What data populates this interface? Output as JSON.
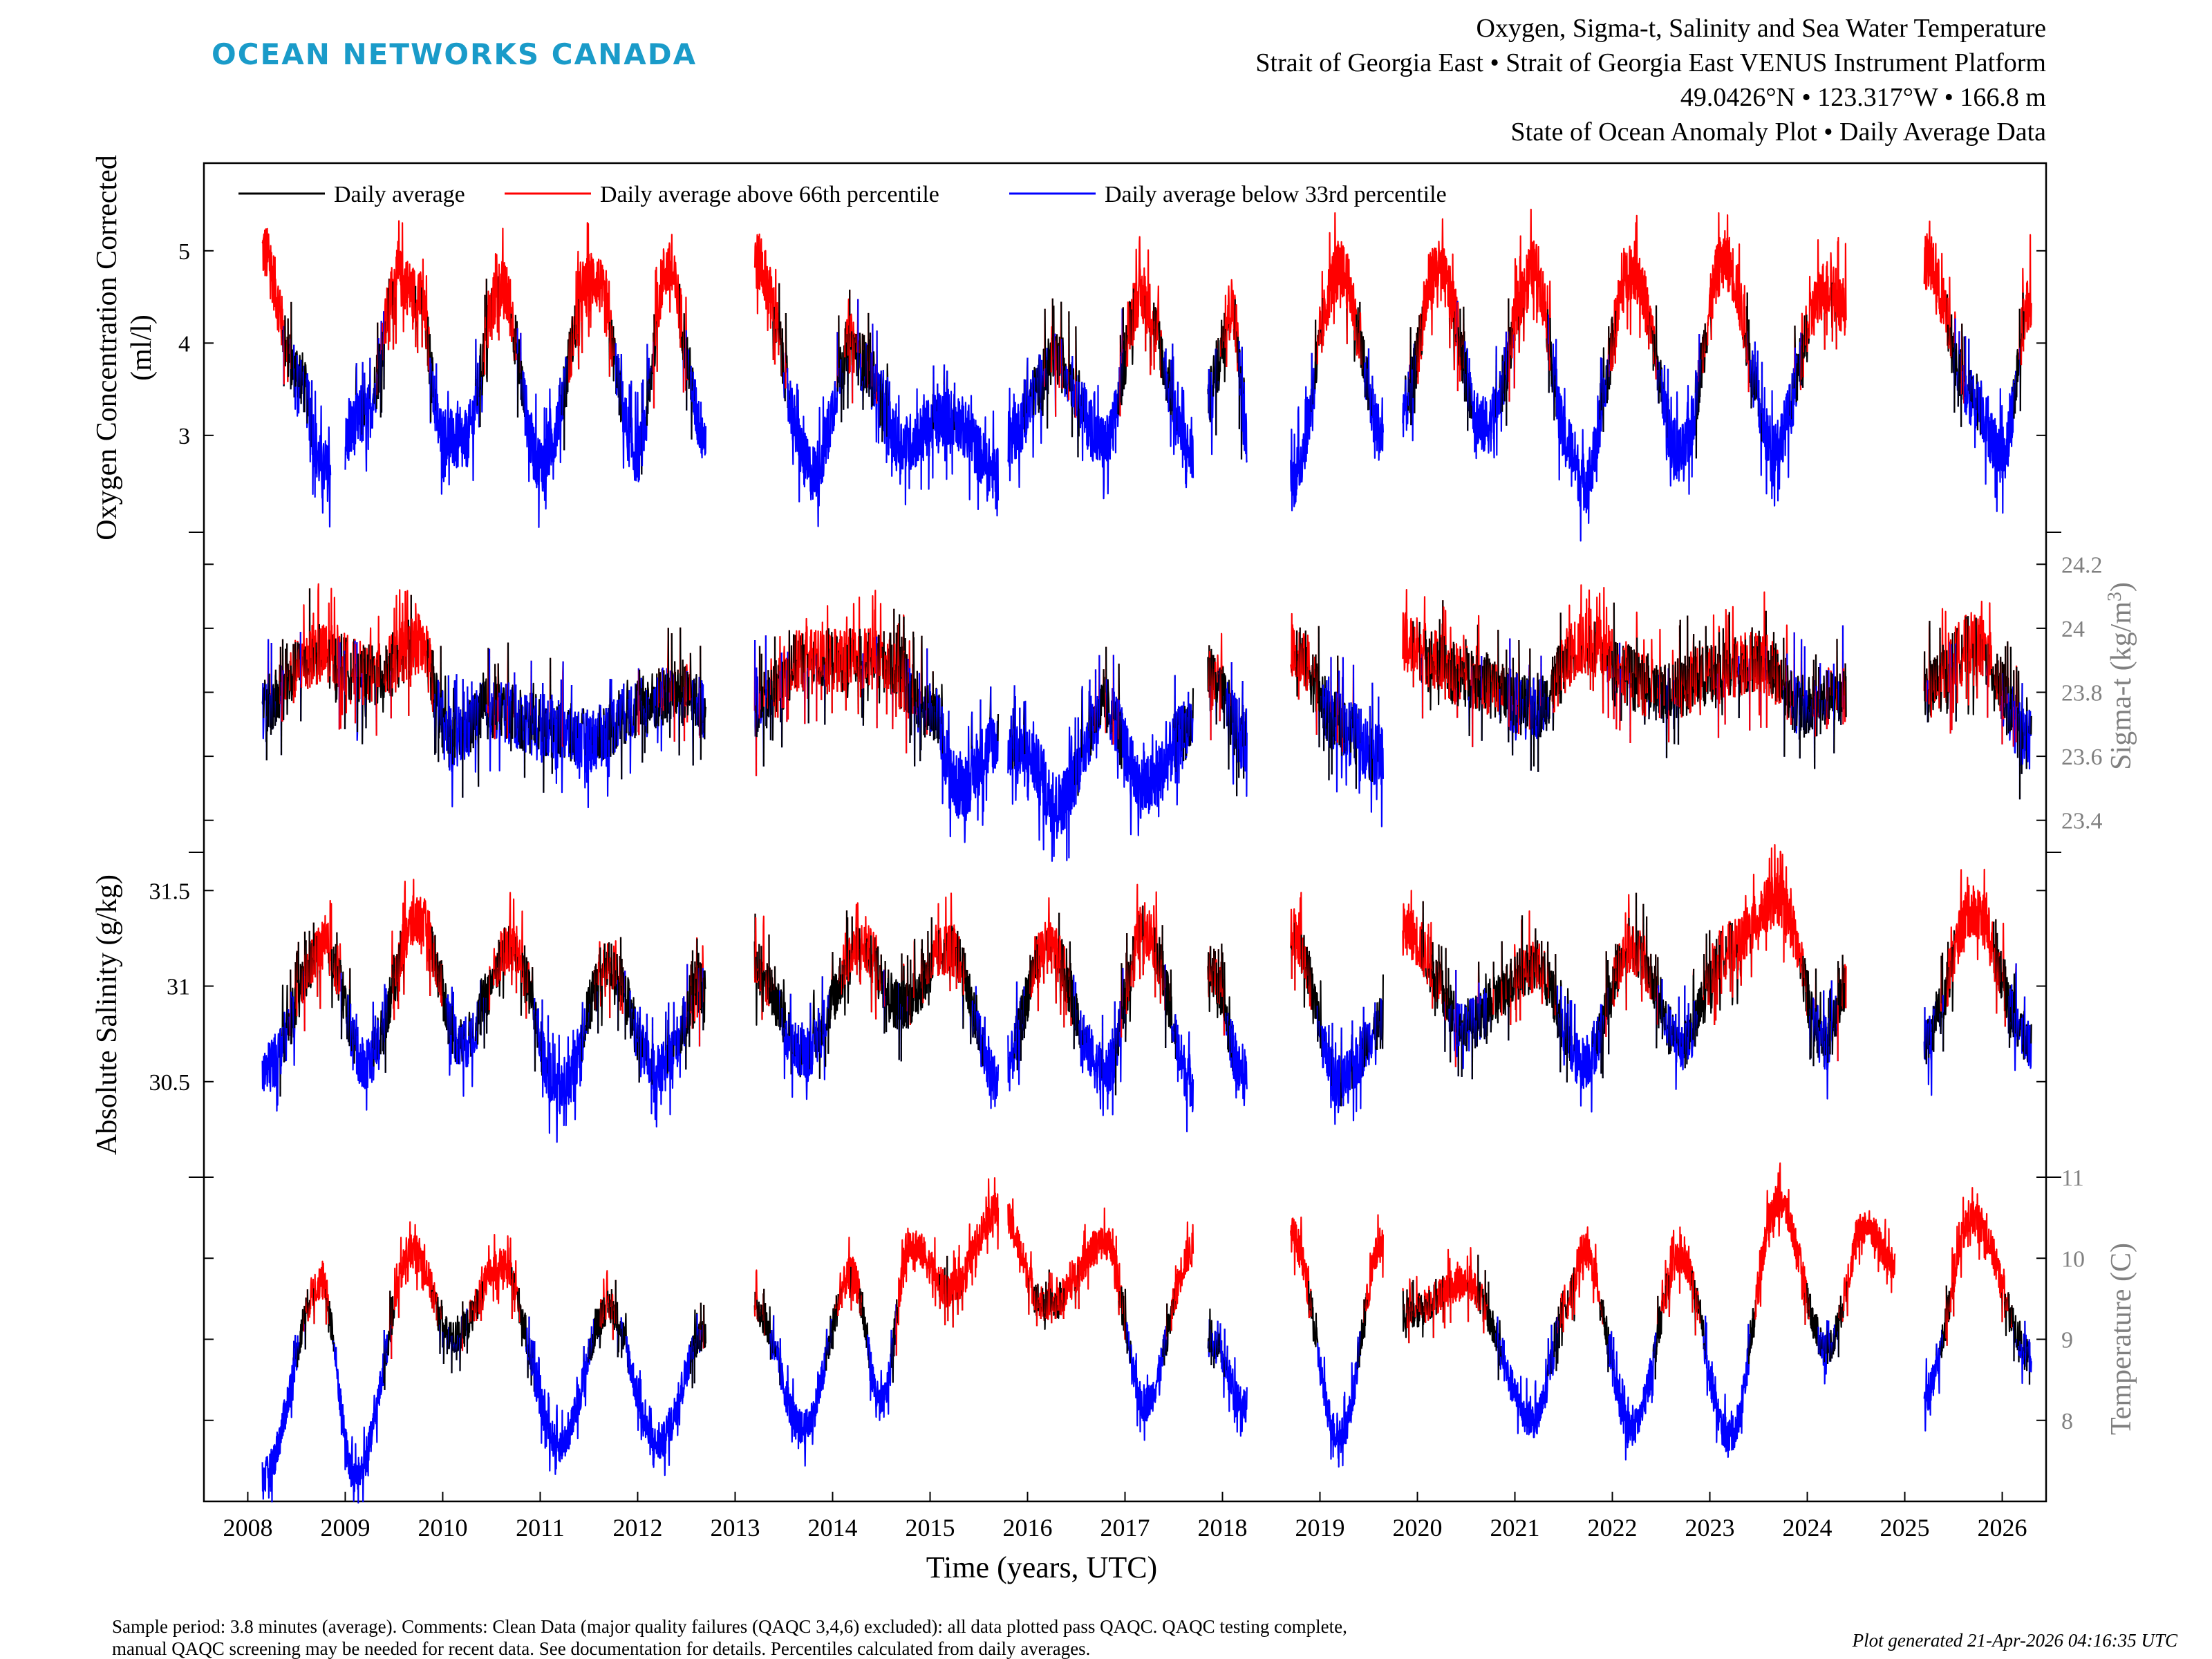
{
  "brand": {
    "logo_text": "OCEAN NETWORKS CANADA",
    "logo_color": "#1a9bc9"
  },
  "header": {
    "title_lines": [
      "Oxygen, Sigma-t, Salinity and Sea Water Temperature",
      "Strait of Georgia East • Strait of Georgia East VENUS Instrument Platform",
      "49.0426°N • 123.317°W • 166.8 m",
      "State of Ocean Anomaly Plot • Daily Average Data"
    ]
  },
  "legend": {
    "items": [
      {
        "label": "Daily average",
        "color": "#000000"
      },
      {
        "label": "Daily average above 66th percentile",
        "color": "#ff0000"
      },
      {
        "label": "Daily average below 33rd percentile",
        "color": "#0000ff"
      }
    ]
  },
  "footer": {
    "note_line1": "Sample period: 3.8 minutes (average). Comments: Clean Data (major quality failures (QAQC 3,4,6) excluded): all data plotted pass QAQC. QAQC testing complete,",
    "note_line2": "manual QAQC screening may be needed for recent data. See documentation for details. Percentiles calculated from daily averages.",
    "generated": "Plot generated 21-Apr-2026 04:16:35 UTC"
  },
  "colors": {
    "normal": "#000000",
    "above": "#ff0000",
    "below": "#0000ff",
    "right_axis_gray": "#808080"
  },
  "chart_data": {
    "type": "line",
    "xlabel": "Time (years, UTC)",
    "x_ticks": [
      "2008",
      "2009",
      "2010",
      "2011",
      "2012",
      "2013",
      "2014",
      "2015",
      "2016",
      "2017",
      "2018",
      "2019",
      "2020",
      "2021",
      "2022",
      "2023",
      "2024",
      "2025",
      "2026"
    ],
    "xlim": [
      2007.55,
      2026.45
    ],
    "panels": [
      {
        "name": "oxygen",
        "ylabel": "Oxygen Concentration Corrected (ml/l)",
        "ylabel_lines": [
          "Oxygen Concentration Corrected",
          "(ml/l)"
        ],
        "axis_side": "left",
        "ylim": [
          1.95,
          5.95
        ],
        "ticks": [
          3,
          4,
          5
        ],
        "tick_labels": [
          "3",
          "4",
          "5"
        ],
        "segments": [
          [
            2008.15,
            2008.85
          ],
          [
            2009.0,
            2012.7
          ],
          [
            2013.2,
            2015.7
          ],
          [
            2015.8,
            2017.7
          ],
          [
            2017.85,
            2018.25
          ],
          [
            2018.7,
            2019.65
          ],
          [
            2019.85,
            2024.4
          ],
          [
            2025.2,
            2026.3
          ]
        ],
        "anchors": [
          [
            2008.15,
            5.0
          ],
          [
            2008.5,
            3.7
          ],
          [
            2008.8,
            2.6
          ],
          [
            2009.2,
            3.2
          ],
          [
            2009.55,
            4.7
          ],
          [
            2009.75,
            4.5
          ],
          [
            2010.0,
            3.0
          ],
          [
            2010.2,
            2.9
          ],
          [
            2010.6,
            4.6
          ],
          [
            2011.0,
            2.7
          ],
          [
            2011.55,
            4.7
          ],
          [
            2012.0,
            2.8
          ],
          [
            2012.3,
            4.8
          ],
          [
            2012.7,
            3.0
          ],
          [
            2013.2,
            4.9
          ],
          [
            2013.8,
            2.6
          ],
          [
            2014.2,
            4.0
          ],
          [
            2014.3,
            3.8
          ],
          [
            2014.7,
            2.9
          ],
          [
            2015.2,
            3.2
          ],
          [
            2015.7,
            2.6
          ],
          [
            2015.8,
            3.0
          ],
          [
            2016.3,
            3.8
          ],
          [
            2016.8,
            2.9
          ],
          [
            2017.15,
            4.5
          ],
          [
            2017.7,
            2.8
          ],
          [
            2017.85,
            3.4
          ],
          [
            2018.1,
            4.4
          ],
          [
            2018.25,
            3.0
          ],
          [
            2018.7,
            2.5
          ],
          [
            2019.2,
            4.8
          ],
          [
            2019.65,
            3.0
          ],
          [
            2019.85,
            3.3
          ],
          [
            2020.2,
            4.8
          ],
          [
            2020.7,
            3.1
          ],
          [
            2021.2,
            4.8
          ],
          [
            2021.55,
            2.9
          ],
          [
            2021.7,
            2.5
          ],
          [
            2022.2,
            4.8
          ],
          [
            2022.7,
            2.8
          ],
          [
            2023.15,
            4.9
          ],
          [
            2023.65,
            2.9
          ],
          [
            2024.2,
            4.6
          ],
          [
            2024.4,
            4.4
          ],
          [
            2025.2,
            4.9
          ],
          [
            2025.7,
            3.4
          ],
          [
            2026.0,
            2.8
          ],
          [
            2026.3,
            4.5
          ]
        ],
        "noise": 0.32,
        "thresholds": [
          3.55,
          4.05
        ]
      },
      {
        "name": "sigma_t",
        "ylabel": "Sigma-t (kg/m3)",
        "axis_side": "right",
        "ylim": [
          23.3,
          24.3
        ],
        "ticks": [
          23.4,
          23.6,
          23.8,
          24.0,
          24.2
        ],
        "tick_labels": [
          "23.4",
          "23.6",
          "23.8",
          "24",
          "24.2"
        ],
        "segments": [
          [
            2008.15,
            2012.7
          ],
          [
            2013.2,
            2015.7
          ],
          [
            2015.8,
            2017.7
          ],
          [
            2017.85,
            2018.25
          ],
          [
            2018.7,
            2019.65
          ],
          [
            2019.85,
            2024.4
          ],
          [
            2025.2,
            2026.3
          ]
        ],
        "anchors": [
          [
            2008.15,
            23.75
          ],
          [
            2008.7,
            23.92
          ],
          [
            2009.3,
            23.85
          ],
          [
            2009.75,
            23.95
          ],
          [
            2010.1,
            23.65
          ],
          [
            2010.5,
            23.75
          ],
          [
            2011.0,
            23.7
          ],
          [
            2011.5,
            23.65
          ],
          [
            2012.0,
            23.75
          ],
          [
            2012.4,
            23.8
          ],
          [
            2012.7,
            23.75
          ],
          [
            2013.2,
            23.75
          ],
          [
            2013.7,
            23.9
          ],
          [
            2014.5,
            23.9
          ],
          [
            2015.0,
            23.75
          ],
          [
            2015.3,
            23.5
          ],
          [
            2015.7,
            23.65
          ],
          [
            2016.0,
            23.6
          ],
          [
            2016.3,
            23.45
          ],
          [
            2016.8,
            23.75
          ],
          [
            2017.2,
            23.5
          ],
          [
            2017.7,
            23.7
          ],
          [
            2017.85,
            23.85
          ],
          [
            2018.25,
            23.65
          ],
          [
            2018.7,
            23.95
          ],
          [
            2019.2,
            23.7
          ],
          [
            2019.65,
            23.6
          ],
          [
            2019.85,
            23.95
          ],
          [
            2020.5,
            23.85
          ],
          [
            2021.2,
            23.75
          ],
          [
            2021.7,
            23.95
          ],
          [
            2022.5,
            23.8
          ],
          [
            2023.0,
            23.85
          ],
          [
            2023.5,
            23.9
          ],
          [
            2024.0,
            23.75
          ],
          [
            2024.4,
            23.8
          ],
          [
            2025.2,
            23.8
          ],
          [
            2025.7,
            23.95
          ],
          [
            2026.3,
            23.65
          ]
        ],
        "noise": 0.1,
        "thresholds": [
          23.72,
          23.86
        ]
      },
      {
        "name": "salinity",
        "ylabel": "Absolute Salinity (g/kg)",
        "axis_side": "left",
        "ylim": [
          30.0,
          31.7
        ],
        "ticks": [
          30.5,
          31.0,
          31.5
        ],
        "tick_labels": [
          "30.5",
          "31",
          "31.5"
        ],
        "segments": [
          [
            2008.15,
            2012.7
          ],
          [
            2013.2,
            2015.7
          ],
          [
            2015.8,
            2017.7
          ],
          [
            2017.85,
            2018.25
          ],
          [
            2018.7,
            2019.65
          ],
          [
            2019.85,
            2024.4
          ],
          [
            2025.2,
            2026.3
          ]
        ],
        "anchors": [
          [
            2008.15,
            30.55
          ],
          [
            2008.8,
            31.2
          ],
          [
            2009.2,
            30.6
          ],
          [
            2009.75,
            31.35
          ],
          [
            2010.2,
            30.7
          ],
          [
            2010.7,
            31.2
          ],
          [
            2011.2,
            30.45
          ],
          [
            2011.7,
            31.1
          ],
          [
            2012.2,
            30.55
          ],
          [
            2012.7,
            31.0
          ],
          [
            2013.2,
            31.1
          ],
          [
            2013.7,
            30.65
          ],
          [
            2014.3,
            31.2
          ],
          [
            2014.7,
            30.9
          ],
          [
            2015.2,
            31.2
          ],
          [
            2015.7,
            30.5
          ],
          [
            2016.2,
            31.2
          ],
          [
            2016.8,
            30.55
          ],
          [
            2017.2,
            31.3
          ],
          [
            2017.7,
            30.5
          ],
          [
            2017.85,
            31.1
          ],
          [
            2018.25,
            30.5
          ],
          [
            2018.7,
            31.3
          ],
          [
            2019.2,
            30.5
          ],
          [
            2019.65,
            30.8
          ],
          [
            2019.85,
            31.3
          ],
          [
            2020.5,
            30.8
          ],
          [
            2021.2,
            31.1
          ],
          [
            2021.7,
            30.6
          ],
          [
            2022.2,
            31.2
          ],
          [
            2022.7,
            30.7
          ],
          [
            2023.2,
            31.2
          ],
          [
            2023.7,
            31.45
          ],
          [
            2024.2,
            30.7
          ],
          [
            2024.4,
            31.0
          ],
          [
            2025.2,
            30.7
          ],
          [
            2025.7,
            31.4
          ],
          [
            2026.3,
            30.7
          ]
        ],
        "noise": 0.14,
        "thresholds": [
          30.78,
          31.08
        ]
      },
      {
        "name": "temperature",
        "ylabel": "Temperature (C)",
        "axis_side": "right",
        "ylim": [
          7.0,
          11.0
        ],
        "ticks": [
          8,
          9,
          10,
          11
        ],
        "tick_labels": [
          "8",
          "9",
          "10",
          "11"
        ],
        "segments": [
          [
            2008.15,
            2012.7
          ],
          [
            2013.2,
            2015.7
          ],
          [
            2015.8,
            2017.7
          ],
          [
            2017.85,
            2018.25
          ],
          [
            2018.7,
            2019.65
          ],
          [
            2019.85,
            2024.9
          ],
          [
            2025.2,
            2026.3
          ]
        ],
        "anchors": [
          [
            2008.15,
            7.3
          ],
          [
            2008.75,
            9.7
          ],
          [
            2009.1,
            7.3
          ],
          [
            2009.7,
            10.1
          ],
          [
            2010.1,
            9.0
          ],
          [
            2010.6,
            9.9
          ],
          [
            2011.2,
            7.7
          ],
          [
            2011.7,
            9.4
          ],
          [
            2012.2,
            7.7
          ],
          [
            2012.7,
            9.1
          ],
          [
            2013.2,
            9.4
          ],
          [
            2013.7,
            7.9
          ],
          [
            2014.2,
            9.8
          ],
          [
            2014.5,
            8.2
          ],
          [
            2014.8,
            10.2
          ],
          [
            2015.2,
            9.6
          ],
          [
            2015.7,
            10.6
          ],
          [
            2016.2,
            9.4
          ],
          [
            2016.8,
            10.2
          ],
          [
            2017.2,
            8.2
          ],
          [
            2017.7,
            10.1
          ],
          [
            2017.85,
            9.0
          ],
          [
            2018.25,
            8.2
          ],
          [
            2018.7,
            10.3
          ],
          [
            2019.2,
            7.8
          ],
          [
            2019.65,
            10.2
          ],
          [
            2019.85,
            9.3
          ],
          [
            2020.5,
            9.7
          ],
          [
            2021.2,
            8.0
          ],
          [
            2021.55,
            9.5
          ],
          [
            2021.7,
            10.1
          ],
          [
            2022.2,
            7.9
          ],
          [
            2022.7,
            10.0
          ],
          [
            2023.2,
            7.8
          ],
          [
            2023.7,
            10.7
          ],
          [
            2024.2,
            8.9
          ],
          [
            2024.6,
            10.4
          ],
          [
            2024.9,
            9.9
          ],
          [
            2025.2,
            8.3
          ],
          [
            2025.7,
            10.5
          ],
          [
            2026.3,
            8.8
          ]
        ],
        "noise": 0.22,
        "thresholds": [
          8.9,
          9.4
        ]
      }
    ]
  }
}
